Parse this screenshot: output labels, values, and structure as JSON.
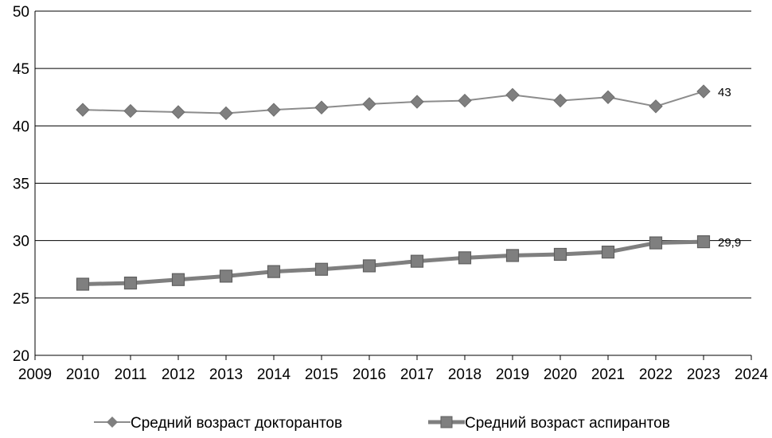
{
  "chart_data": {
    "type": "line",
    "title": "",
    "xlabel": "",
    "ylabel": "",
    "xlim": [
      2009,
      2024
    ],
    "ylim": [
      20,
      50
    ],
    "x_ticks": [
      2009,
      2010,
      2011,
      2012,
      2013,
      2014,
      2015,
      2016,
      2017,
      2018,
      2019,
      2020,
      2021,
      2022,
      2023,
      2024
    ],
    "y_ticks": [
      20,
      25,
      30,
      35,
      40,
      45,
      50
    ],
    "grid": "horizontal",
    "legend_position": "bottom",
    "x": [
      2010,
      2011,
      2012,
      2013,
      2014,
      2015,
      2016,
      2017,
      2018,
      2019,
      2020,
      2021,
      2022,
      2023
    ],
    "series": [
      {
        "name": "Средний возраст докторантов",
        "marker": "diamond",
        "color": "#8c8c8c",
        "values": [
          41.4,
          41.3,
          41.2,
          41.1,
          41.4,
          41.6,
          41.9,
          42.1,
          42.2,
          42.7,
          42.2,
          42.5,
          41.7,
          43.0
        ],
        "end_label": "43"
      },
      {
        "name": "Средний возраст аспирантов",
        "marker": "square",
        "color": "#7f7f7f",
        "values": [
          26.2,
          26.3,
          26.6,
          26.9,
          27.3,
          27.5,
          27.8,
          28.2,
          28.5,
          28.7,
          28.8,
          29.0,
          29.8,
          29.9
        ],
        "end_label": "29,9"
      }
    ]
  }
}
